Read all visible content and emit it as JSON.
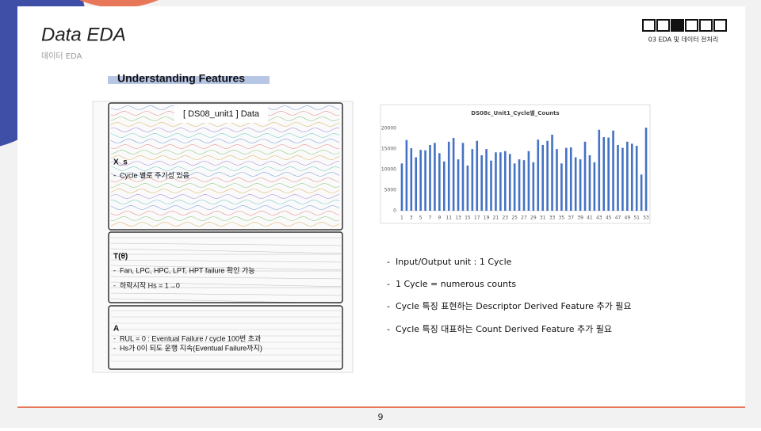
{
  "header": {
    "title": "Data EDA",
    "subtitle": "데이터 EDA",
    "section": "03 EDA 및 데이터 전처리"
  },
  "heading": "Understanding Features",
  "figure": {
    "label": "[ DS08_unit1 ] Data",
    "blocks": [
      {
        "title": "X_s",
        "lines": [
          "-  Cycle 별로 주기성 있음"
        ]
      },
      {
        "title": "T(θ)",
        "lines": [
          "-  Fan, LPC, HPC, LPT, HPT failure 확인 가능",
          "-  하락시작 Hs = 1→0"
        ]
      },
      {
        "title": "A",
        "lines": [
          "-  RUL = 0 : Eventual Failure / cycle 100번 초과",
          "-  Hs가 0이 되도 운행 지속(Eventual Failure까지)"
        ]
      }
    ]
  },
  "chart_data": {
    "type": "bar",
    "title": "DS08c_Unit1_Cycle별_Counts",
    "categories": [
      1,
      null,
      3,
      null,
      5,
      null,
      7,
      null,
      9,
      null,
      11,
      null,
      13,
      null,
      15,
      null,
      17,
      null,
      19,
      null,
      21,
      null,
      23,
      null,
      25,
      null,
      27,
      null,
      29,
      null,
      31,
      null,
      33,
      null,
      35,
      null,
      37,
      null,
      39,
      null,
      41,
      null,
      43,
      null,
      45,
      null,
      47,
      null,
      49,
      null,
      51,
      null,
      53
    ],
    "values": [
      11500,
      17200,
      15200,
      13000,
      14800,
      14700,
      16000,
      16500,
      14000,
      12000,
      16800,
      17700,
      12500,
      16500,
      11000,
      15000,
      17000,
      13500,
      15000,
      12200,
      14200,
      14200,
      14500,
      13800,
      11500,
      12500,
      12300,
      14500,
      11800,
      17300,
      16000,
      17000,
      18500,
      15000,
      11500,
      15300,
      15400,
      13000,
      12500,
      16800,
      13500,
      11800,
      19700,
      17900,
      17800,
      19500,
      16000,
      15300,
      16800,
      16300,
      15800,
      8800,
      20200
    ],
    "color": "#4472c4",
    "ylim": [
      0,
      21000
    ],
    "yticks": [
      0,
      5000,
      10000,
      15000,
      20000
    ],
    "grid": false
  },
  "bullets": [
    "-  Input/Output unit : 1 Cycle",
    "-  1 Cycle = numerous counts",
    "-  Cycle 특징 표현하는 Descriptor Derived Feature 추가 필요",
    "-  Cycle 특징 대표하는 Count Derived Feature 추가 필요"
  ],
  "page_number": "9"
}
